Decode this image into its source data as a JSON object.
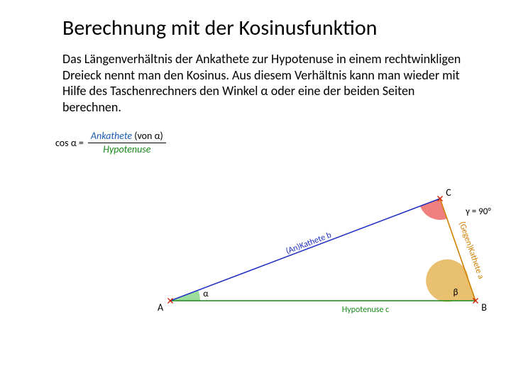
{
  "slide": {
    "title": "Berechnung mit der Kosinusfunktion",
    "body": "Das Längenverhältnis der Ankathete zur Hypotenuse in einem rechtwinkligen Dreieck nennt man den Kosinus. Aus diesem Verhältnis kann man wieder mit Hilfe des Taschenrechners den Winkel α oder eine der beiden Seiten berechnen."
  },
  "formula": {
    "lhs": "cos α =",
    "numerator_main": "Ankathete",
    "numerator_paren": "(von α)",
    "denominator": "Hypotenuse",
    "colors": {
      "numerator": "#1a5fb4",
      "denominator": "#1a8a1a",
      "rule": "#000000"
    }
  },
  "triangle": {
    "points": {
      "A": [
        40,
        172
      ],
      "B": [
        470,
        172
      ],
      "C": [
        420,
        28
      ]
    },
    "labels": {
      "A": "A",
      "B": "B",
      "C": "C",
      "alpha": "α",
      "beta": "β",
      "gamma_text": "γ = 90°",
      "hypotenuse": "Hypotenuse c",
      "ankathete": "(An)Kathete b",
      "gegenkathete": "(Gegen)Kathete a"
    },
    "colors": {
      "side_b": "#2030c0",
      "side_c": "#1a8a1a",
      "side_a": "#d08000",
      "vertex_marker": "#d02000",
      "alpha_fill": "#9bdc9b",
      "beta_fill": "#e8c070",
      "gamma_fill": "#f08080",
      "label_text": "#000000"
    },
    "font_sizes": {
      "vertex": 14,
      "angle": 13,
      "side": 12
    },
    "line_width": 1.6
  }
}
